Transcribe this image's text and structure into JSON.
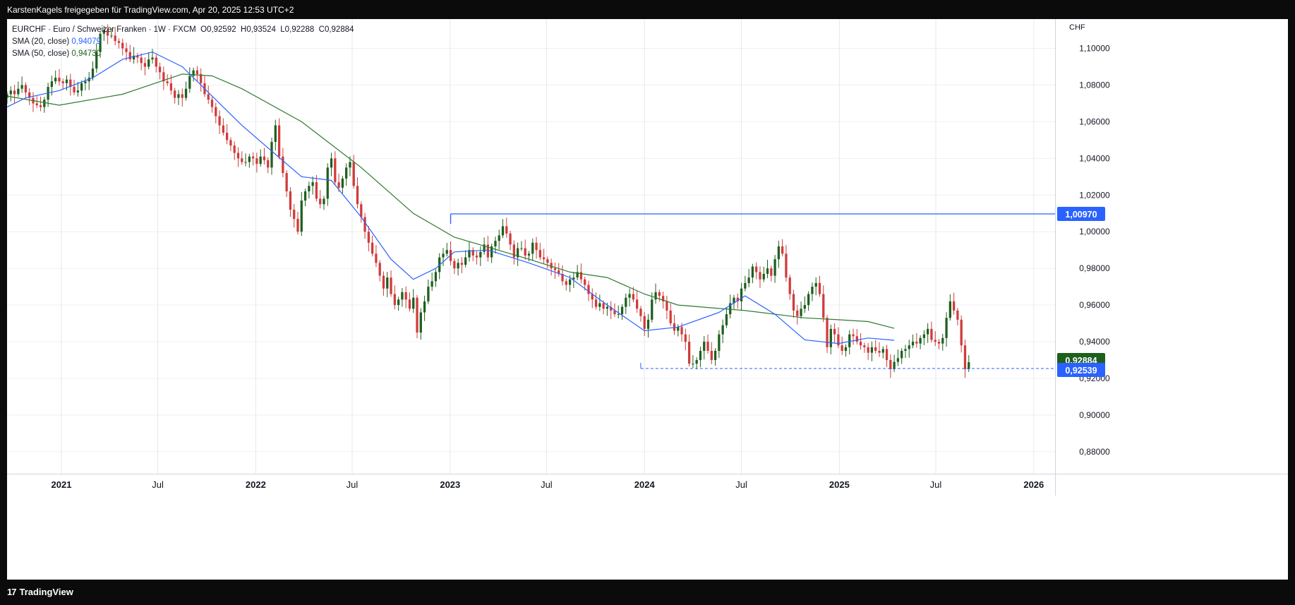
{
  "header": {
    "attribution": "KarstenKagels freigegeben für TradingView.com, Apr 20, 2025 12:53 UTC+2"
  },
  "legend": {
    "symbol_line": "EURCHF · Euro / Schweizer Franken · 1W · FXCM",
    "open": "O0,92592",
    "high": "H0,93524",
    "low": "L0,92288",
    "close": "C0,92884",
    "sma20_label": "SMA (20, close)",
    "sma20_value": "0,94079",
    "sma50_label": "SMA (50, close)",
    "sma50_value": "0,94730"
  },
  "footer": {
    "brand": "TradingView"
  },
  "colors": {
    "up": "#1e5f1e",
    "down": "#d03b3b",
    "sma20": "#2962ff",
    "sma50": "#2f7a2f",
    "level": "#2962ff",
    "grid": "#e0e3eb"
  },
  "chart_data": {
    "type": "candlestick",
    "currency_label": "CHF",
    "ylim": [
      0.868,
      1.116
    ],
    "y_ticks": [
      "1,10000",
      "1,08000",
      "1,06000",
      "1,04000",
      "1,02000",
      "1,00000",
      "0,98000",
      "0,96000",
      "0,94000",
      "0,92000",
      "0,90000",
      "0,88000"
    ],
    "x_ticks": [
      {
        "label": "2021",
        "bold": true
      },
      {
        "label": "Jul",
        "bold": false
      },
      {
        "label": "2022",
        "bold": true
      },
      {
        "label": "Jul",
        "bold": false
      },
      {
        "label": "2023",
        "bold": true
      },
      {
        "label": "Jul",
        "bold": false
      },
      {
        "label": "2024",
        "bold": true
      },
      {
        "label": "Jul",
        "bold": false
      },
      {
        "label": "2025",
        "bold": true
      },
      {
        "label": "Jul",
        "bold": false
      },
      {
        "label": "2026",
        "bold": true
      }
    ],
    "x_range": [
      "2020-09-21",
      "2026-02-10"
    ],
    "candle_start": "2020-09-21",
    "close_series": [
      1.075,
      1.077,
      1.075,
      1.078,
      1.08,
      1.076,
      1.073,
      1.07,
      1.069,
      1.068,
      1.072,
      1.079,
      1.082,
      1.084,
      1.082,
      1.081,
      1.083,
      1.079,
      1.076,
      1.077,
      1.081,
      1.082,
      1.084,
      1.089,
      1.098,
      1.108,
      1.11,
      1.107,
      1.107,
      1.104,
      1.103,
      1.1,
      1.098,
      1.094,
      1.096,
      1.095,
      1.092,
      1.09,
      1.094,
      1.095,
      1.09,
      1.087,
      1.082,
      1.081,
      1.077,
      1.073,
      1.075,
      1.073,
      1.078,
      1.085,
      1.088,
      1.086,
      1.081,
      1.075,
      1.072,
      1.068,
      1.063,
      1.058,
      1.054,
      1.05,
      1.047,
      1.043,
      1.04,
      1.038,
      1.038,
      1.041,
      1.04,
      1.037,
      1.041,
      1.039,
      1.035,
      1.049,
      1.058,
      1.041,
      1.032,
      1.022,
      1.012,
      1.007,
      1.0,
      1.017,
      1.022,
      1.025,
      1.027,
      1.018,
      1.015,
      1.018,
      1.035,
      1.04,
      1.027,
      1.024,
      1.029,
      1.035,
      1.038,
      1.025,
      1.015,
      1.008,
      1.0,
      0.994,
      0.988,
      0.983,
      0.976,
      0.969,
      0.975,
      0.966,
      0.96,
      0.963,
      0.967,
      0.963,
      0.958,
      0.964,
      0.945,
      0.956,
      0.962,
      0.97,
      0.973,
      0.978,
      0.986,
      0.988,
      0.99,
      0.984,
      0.98,
      0.983,
      0.982,
      0.986,
      0.99,
      0.987,
      0.986,
      0.989,
      0.993,
      0.986,
      0.992,
      0.995,
      0.998,
      1.003,
      0.999,
      0.993,
      0.986,
      0.991,
      0.991,
      0.987,
      0.988,
      0.994,
      0.99,
      0.986,
      0.985,
      0.983,
      0.98,
      0.979,
      0.977,
      0.973,
      0.971,
      0.974,
      0.975,
      0.978,
      0.974,
      0.971,
      0.966,
      0.963,
      0.959,
      0.961,
      0.958,
      0.959,
      0.957,
      0.955,
      0.955,
      0.959,
      0.964,
      0.966,
      0.963,
      0.958,
      0.954,
      0.947,
      0.952,
      0.963,
      0.967,
      0.965,
      0.962,
      0.957,
      0.95,
      0.946,
      0.948,
      0.944,
      0.94,
      0.928,
      0.928,
      0.93,
      0.935,
      0.94,
      0.935,
      0.93,
      0.935,
      0.944,
      0.949,
      0.955,
      0.961,
      0.964,
      0.962,
      0.969,
      0.972,
      0.975,
      0.981,
      0.978,
      0.974,
      0.977,
      0.98,
      0.976,
      0.985,
      0.992,
      0.988,
      0.975,
      0.966,
      0.957,
      0.954,
      0.958,
      0.96,
      0.966,
      0.97,
      0.972,
      0.966,
      0.953,
      0.937,
      0.947,
      0.944,
      0.938,
      0.935,
      0.937,
      0.944,
      0.943,
      0.94,
      0.938,
      0.937,
      0.934,
      0.937,
      0.935,
      0.934,
      0.936,
      0.93,
      0.925,
      0.929,
      0.931,
      0.935,
      0.936,
      0.938,
      0.94,
      0.939,
      0.942,
      0.944,
      0.947,
      0.941,
      0.94,
      0.939,
      0.942,
      0.953,
      0.962,
      0.957,
      0.952,
      0.938,
      0.925,
      0.9288
    ],
    "sma20": {
      "name": "SMA (20, close)",
      "last": "0,94079",
      "points": [
        [
          "2020-09-21",
          1.068
        ],
        [
          "2020-10-26",
          1.073
        ],
        [
          "2020-12-28",
          1.077
        ],
        [
          "2021-03-01",
          1.084
        ],
        [
          "2021-04-26",
          1.094
        ],
        [
          "2021-06-21",
          1.098
        ],
        [
          "2021-08-16",
          1.09
        ],
        [
          "2021-10-11",
          1.074
        ],
        [
          "2021-12-06",
          1.058
        ],
        [
          "2022-01-31",
          1.044
        ],
        [
          "2022-03-28",
          1.03
        ],
        [
          "2022-05-23",
          1.028
        ],
        [
          "2022-07-18",
          1.008
        ],
        [
          "2022-09-12",
          0.985
        ],
        [
          "2022-10-24",
          0.974
        ],
        [
          "2022-12-05",
          0.98
        ],
        [
          "2023-01-09",
          0.989
        ],
        [
          "2023-03-13",
          0.99
        ],
        [
          "2023-05-29",
          0.983
        ],
        [
          "2023-08-14",
          0.975
        ],
        [
          "2023-10-23",
          0.96
        ],
        [
          "2024-01-01",
          0.946
        ],
        [
          "2024-03-04",
          0.948
        ],
        [
          "2024-05-20",
          0.956
        ],
        [
          "2024-07-08",
          0.965
        ],
        [
          "2024-09-02",
          0.955
        ],
        [
          "2024-10-28",
          0.941
        ],
        [
          "2024-12-30",
          0.939
        ],
        [
          "2025-02-24",
          0.942
        ],
        [
          "2025-04-14",
          0.9408
        ]
      ]
    },
    "sma50": {
      "name": "SMA (50, close)",
      "last": "0,94730",
      "points": [
        [
          "2020-09-21",
          1.074
        ],
        [
          "2020-12-28",
          1.069
        ],
        [
          "2021-04-26",
          1.075
        ],
        [
          "2021-08-16",
          1.086
        ],
        [
          "2021-10-11",
          1.085
        ],
        [
          "2021-12-06",
          1.078
        ],
        [
          "2022-03-28",
          1.06
        ],
        [
          "2022-07-18",
          1.035
        ],
        [
          "2022-10-24",
          1.01
        ],
        [
          "2023-01-09",
          0.997
        ],
        [
          "2023-05-29",
          0.985
        ],
        [
          "2023-08-14",
          0.978
        ],
        [
          "2023-10-23",
          0.975
        ],
        [
          "2024-01-01",
          0.966
        ],
        [
          "2024-03-04",
          0.96
        ],
        [
          "2024-07-08",
          0.957
        ],
        [
          "2024-10-28",
          0.953
        ],
        [
          "2024-12-30",
          0.952
        ],
        [
          "2025-02-24",
          0.951
        ],
        [
          "2025-04-14",
          0.9473
        ]
      ]
    },
    "resistance_line": {
      "value": 1.0097,
      "label": "1,00970",
      "from": "2023-01-02"
    },
    "support_line": {
      "value": 0.92539,
      "label": "0,92539",
      "from": "2023-12-25"
    },
    "last_price": {
      "value": 0.92884,
      "label": "0,92884"
    }
  }
}
